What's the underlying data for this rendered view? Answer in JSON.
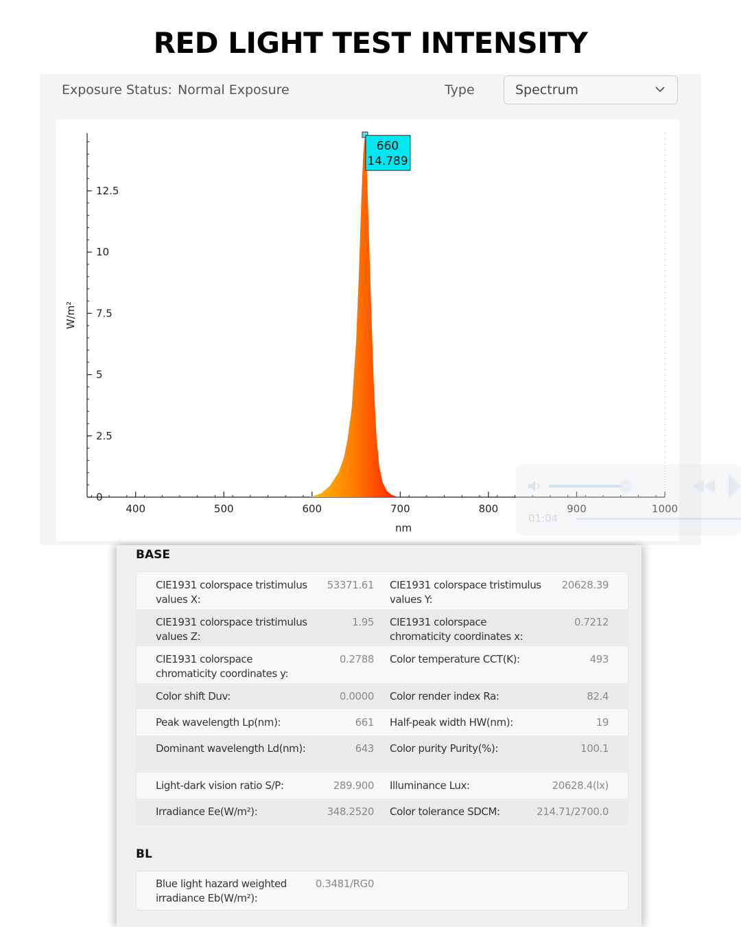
{
  "page_title": "RED LIGHT TEST INTENSITY",
  "toolbar": {
    "exposure_label": "Exposure Status:",
    "exposure_value": "Normal Exposure",
    "type_label": "Type",
    "type_selected": "Spectrum"
  },
  "chart_data": {
    "type": "area",
    "title": "",
    "xlabel": "nm",
    "ylabel": "W/m²",
    "xlim": [
      345,
      1000
    ],
    "ylim": [
      0,
      14.85
    ],
    "x_ticks": [
      400,
      500,
      600,
      700,
      800,
      900,
      1000
    ],
    "y_ticks": [
      0,
      2.5,
      5,
      7.5,
      10,
      12.5
    ],
    "y_tick_labels": [
      "0",
      "2.5",
      "5",
      "7.5",
      "10",
      "12.5"
    ],
    "grid": false,
    "series": [
      {
        "x": [
          598,
          610,
          620,
          630,
          636,
          640,
          645,
          650,
          653,
          656,
          658,
          660,
          662,
          664,
          667,
          670,
          673,
          676,
          680,
          685,
          690,
          695,
          700
        ],
        "y": [
          0,
          0.15,
          0.45,
          1.0,
          1.6,
          2.3,
          3.6,
          6.4,
          9.0,
          12.3,
          14.0,
          14.789,
          13.5,
          11.3,
          7.8,
          4.6,
          2.5,
          1.3,
          0.6,
          0.25,
          0.1,
          0.03,
          0
        ]
      }
    ],
    "annotation": {
      "x": 660,
      "y": 14.789,
      "label_x": "660",
      "label_y": "14.789"
    }
  },
  "overlay": {
    "time": "01:04"
  },
  "base": {
    "title": "BASE",
    "rows": [
      {
        "l1": "CIE1931 colorspace tristimulus values X:",
        "v1": "53371.61",
        "l2": "CIE1931 colorspace tristimulus values Y:",
        "v2": "20628.39"
      },
      {
        "l1": "CIE1931 colorspace tristimulus values Z:",
        "v1": "1.95",
        "l2": "CIE1931 colorspace chromaticity coordinates x:",
        "v2": "0.7212"
      },
      {
        "l1": "CIE1931 colorspace chromaticity coordinates y:",
        "v1": "0.2788",
        "l2": "Color temperature CCT(K):",
        "v2": "493"
      },
      {
        "l1": "Color shift Duv:",
        "v1": "0.0000",
        "l2": "Color render index Ra:",
        "v2": "82.4"
      },
      {
        "l1": "Peak wavelength Lp(nm):",
        "v1": "661",
        "l2": "Half-peak width HW(nm):",
        "v2": "19"
      },
      {
        "l1": "Dominant wavelength Ld(nm):",
        "v1": "643",
        "l2": "Color purity Purity(%):",
        "v2": "100.1"
      },
      {
        "l1": "Light-dark vision ratio S/P:",
        "v1": "289.900",
        "l2": "Illuminance Lux:",
        "v2": "20628.4(lx)"
      },
      {
        "l1": "Irradiance Ee(W/m²):",
        "v1": "348.2520",
        "l2": "Color tolerance SDCM:",
        "v2": "214.71/2700.0"
      }
    ]
  },
  "bl": {
    "title": "BL",
    "label": "Blue light hazard weighted irradiance Eb(W/m²):",
    "value": "0.3481/RG0"
  }
}
